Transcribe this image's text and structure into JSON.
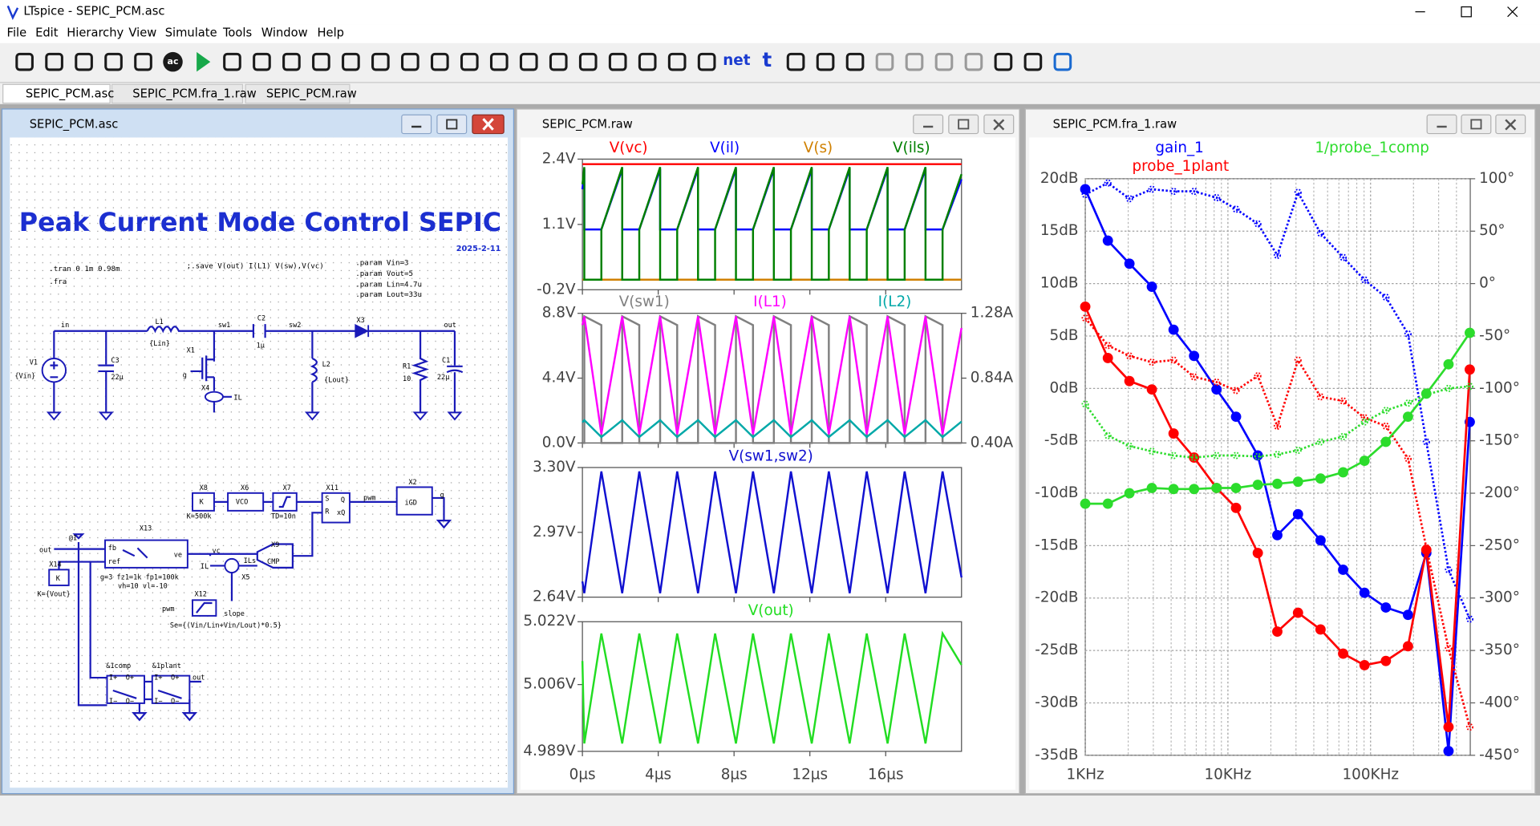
{
  "window": {
    "title": "LTspice - SEPIC_PCM.asc"
  },
  "menu": [
    "File",
    "Edit",
    "Hierarchy",
    "View",
    "Simulate",
    "Tools",
    "Window",
    "Help"
  ],
  "toolbar": [
    "ac",
    "net",
    "t"
  ],
  "tabs": [
    "SEPIC_PCM.asc",
    "SEPIC_PCM.fra_1.raw",
    "SEPIC_PCM.raw"
  ],
  "schematic": {
    "title": "SEPIC_PCM.asc",
    "heading": "Peak Current Mode Control SEPIC",
    "date": "2025-2-11",
    "directives": [
      ".tran 0 1m 0.98m",
      ".fra",
      ";.save V(out) I(L1) V(sw),V(vc)",
      ".param Vin=3",
      ".param Vout=5",
      ".param Lin=4.7u",
      ".param Lout=33u"
    ],
    "labels": [
      "in",
      "L1",
      "{Lin}",
      "sw1",
      "C2",
      "1µ",
      "sw2",
      "X3",
      "out",
      "V1",
      "{Vin}",
      "C3",
      "22µ",
      "X1",
      "g",
      "X4",
      "IL",
      "L2",
      "{Lout}",
      "R1",
      "10",
      "C1",
      "22µ",
      "X8",
      "K",
      "K=500k",
      "X6",
      "VCO",
      "X7",
      "TD=10n",
      "X11",
      "S",
      "Q",
      "R",
      "xQ",
      "pwm",
      "X2",
      "iGD",
      "g",
      "X13",
      "fb",
      "ref",
      "ve",
      "vc",
      "X9",
      "CMP",
      "ILs",
      "IL",
      "X5",
      "g=3 fz1=1k fp1=100k",
      "vh=10 vl=-10",
      "out",
      "@1",
      "X14",
      "K",
      "K={Vout}",
      "X12",
      "pwm",
      "slope",
      "Se={(Vin/Lin+Vin/Lout)*0.5}",
      "&1comp",
      "&1plant",
      "out",
      "I+",
      "O+",
      "I−",
      "O−",
      "I+",
      "O+",
      "I−",
      "O−"
    ]
  },
  "transient": {
    "title": "SEPIC_PCM.raw",
    "xlim": [
      0,
      20
    ],
    "xticks": [
      {
        "value": 0,
        "label": "0µs"
      },
      {
        "value": 4,
        "label": "4µs"
      },
      {
        "value": 8,
        "label": "8µs"
      },
      {
        "value": 12,
        "label": "12µs"
      },
      {
        "value": 16,
        "label": "16µs"
      }
    ],
    "panes": [
      {
        "ylim": [
          -0.2,
          2.4
        ],
        "yticks": [
          {
            "value": -0.2,
            "label": "-0.2V"
          },
          {
            "value": 1.1,
            "label": "1.1V"
          },
          {
            "value": 2.4,
            "label": "2.4V"
          }
        ],
        "x": [
          0,
          0.1,
          0.1,
          1,
          1,
          2.1,
          2.1,
          3,
          3,
          4.1,
          4.1,
          5,
          5,
          6.1,
          6.1,
          7,
          7,
          8.1,
          8.1,
          9,
          9,
          10.1,
          10.1,
          11,
          11,
          12.1,
          12.1,
          13,
          13,
          14.1,
          14.1,
          15,
          15,
          16.1,
          16.1,
          17,
          17,
          18.1,
          18.1,
          19,
          19,
          20
        ],
        "series": [
          {
            "name": "V(vc)",
            "color": "#ff0000",
            "x": [
              0,
              20
            ],
            "values": [
              2.3,
              2.3
            ]
          },
          {
            "name": "V(il)",
            "color": "#0000ff",
            "values": [
              1.8,
              2.2,
              1.0,
              1.0,
              1.0,
              2.2,
              1.0,
              1.0,
              1.0,
              2.2,
              1.0,
              1.0,
              1.0,
              2.2,
              1.0,
              1.0,
              1.0,
              2.2,
              1.0,
              1.0,
              1.0,
              2.2,
              1.0,
              1.0,
              1.0,
              2.2,
              1.0,
              1.0,
              1.0,
              2.2,
              1.0,
              1.0,
              1.0,
              2.2,
              1.0,
              1.0,
              1.0,
              2.2,
              1.0,
              1.0,
              1.0,
              2.0
            ]
          },
          {
            "name": "V(s)",
            "color": "#d08000",
            "x": [
              0,
              20
            ],
            "values": [
              0,
              0
            ]
          },
          {
            "name": "V(ils)",
            "color": "#008000",
            "values": [
              1.9,
              2.24,
              0,
              0,
              1.0,
              2.24,
              0,
              0,
              1.0,
              2.24,
              0,
              0,
              1.0,
              2.24,
              0,
              0,
              1.0,
              2.24,
              0,
              0,
              1.0,
              2.24,
              0,
              0,
              1.0,
              2.24,
              0,
              0,
              1.0,
              2.24,
              0,
              0,
              1.0,
              2.24,
              0,
              0,
              1.0,
              2.24,
              0,
              0,
              1.0,
              2.1
            ]
          }
        ]
      },
      {
        "ylim": [
          0,
          8.8
        ],
        "yticks": [
          {
            "value": 0,
            "label": "0.0V"
          },
          {
            "value": 4.4,
            "label": "4.4V"
          },
          {
            "value": 8.8,
            "label": "8.8V"
          }
        ],
        "y2lim": [
          0.4,
          1.28
        ],
        "y2ticks": [
          {
            "value": 0.4,
            "label": "0.40A"
          },
          {
            "value": 0.84,
            "label": "0.84A"
          },
          {
            "value": 1.28,
            "label": "1.28A"
          }
        ],
        "x": [
          0,
          0.1,
          0.1,
          1,
          1,
          2.1,
          2.1,
          3,
          3,
          4.1,
          4.1,
          5,
          5,
          6.1,
          6.1,
          7,
          7,
          8.1,
          8.1,
          9,
          9,
          10.1,
          10.1,
          11,
          11,
          12.1,
          12.1,
          13,
          13,
          14.1,
          14.1,
          15,
          15,
          16.1,
          16.1,
          17,
          17,
          18.1,
          18.1,
          19,
          19,
          20
        ],
        "series": [
          {
            "name": "V(sw1)",
            "color": "#808080",
            "values": [
              0,
              0,
              8.6,
              8.0,
              0,
              0,
              8.6,
              8.0,
              0,
              0,
              8.6,
              8.0,
              0,
              0,
              8.6,
              8.0,
              0,
              0,
              8.6,
              8.0,
              0,
              0,
              8.6,
              8.0,
              0,
              0,
              8.6,
              8.0,
              0,
              0,
              8.6,
              8.0,
              0,
              0,
              8.6,
              8.0,
              0,
              0,
              8.6,
              8.0,
              0,
              0
            ]
          },
          {
            "name": "I(L1)",
            "color": "#ff00ff",
            "axis": "y2",
            "x": [
              0,
              0.1,
              1,
              2.1,
              3,
              4.1,
              5,
              6.1,
              7,
              8.1,
              9,
              10.1,
              11,
              12.1,
              13,
              14.1,
              15,
              16.1,
              17,
              18.1,
              19,
              20
            ],
            "values": [
              1.2,
              1.26,
              0.46,
              1.26,
              0.46,
              1.26,
              0.46,
              1.26,
              0.46,
              1.26,
              0.46,
              1.26,
              0.46,
              1.26,
              0.46,
              1.26,
              0.46,
              1.26,
              0.46,
              1.26,
              0.46,
              1.18
            ]
          },
          {
            "name": "I(L2)",
            "color": "#00a8a8",
            "axis": "y2",
            "x": [
              0,
              0.1,
              1,
              2.1,
              3,
              4.1,
              5,
              6.1,
              7,
              8.1,
              9,
              10.1,
              11,
              12.1,
              13,
              14.1,
              15,
              16.1,
              17,
              18.1,
              19,
              20
            ],
            "values": [
              0.54,
              0.555,
              0.44,
              0.555,
              0.44,
              0.555,
              0.44,
              0.555,
              0.44,
              0.555,
              0.44,
              0.555,
              0.44,
              0.555,
              0.44,
              0.555,
              0.44,
              0.555,
              0.44,
              0.555,
              0.44,
              0.545
            ]
          }
        ]
      },
      {
        "ylim": [
          2.64,
          3.3
        ],
        "yticks": [
          {
            "value": 2.64,
            "label": "2.64V"
          },
          {
            "value": 2.97,
            "label": "2.97V"
          },
          {
            "value": 3.3,
            "label": "3.30V"
          }
        ],
        "x": [
          0,
          0.1,
          1,
          2.1,
          3,
          4.1,
          5,
          6.1,
          7,
          8.1,
          9,
          10.1,
          11,
          12.1,
          13,
          14.1,
          15,
          16.1,
          17,
          18.1,
          19,
          20
        ],
        "series": [
          {
            "name": "V(sw1,sw2)",
            "color": "#1010d0",
            "values": [
              2.72,
              2.66,
              3.28,
              2.66,
              3.28,
              2.66,
              3.28,
              2.66,
              3.28,
              2.66,
              3.28,
              2.66,
              3.28,
              2.66,
              3.28,
              2.66,
              3.28,
              2.66,
              3.28,
              2.66,
              3.28,
              2.74
            ]
          }
        ]
      },
      {
        "ylim": [
          4.989,
          5.022
        ],
        "yticks": [
          {
            "value": 4.989,
            "label": "4.989V"
          },
          {
            "value": 5.006,
            "label": "5.006V"
          },
          {
            "value": 5.022,
            "label": "5.022V"
          }
        ],
        "x": [
          0,
          0.1,
          1,
          2.1,
          3,
          4.1,
          5,
          6.1,
          7,
          8.1,
          9,
          10.1,
          11,
          12.1,
          13,
          14.1,
          15,
          16.1,
          17,
          18.1,
          19,
          20
        ],
        "series": [
          {
            "name": "V(out)",
            "color": "#22dd22",
            "values": [
              5.012,
              4.991,
              5.019,
              4.991,
              5.019,
              4.991,
              5.019,
              4.991,
              5.019,
              4.991,
              5.019,
              4.991,
              5.019,
              4.991,
              5.019,
              4.991,
              5.019,
              4.991,
              5.019,
              4.991,
              5.019,
              5.011
            ]
          }
        ]
      }
    ]
  },
  "bode": {
    "title": "SEPIC_PCM.fra_1.raw",
    "xscale": "log",
    "grid": true,
    "xlim": [
      1000,
      500000
    ],
    "xticks": [
      {
        "value": 1000,
        "label": "1KHz"
      },
      {
        "value": 10000,
        "label": "10KHz"
      },
      {
        "value": 100000,
        "label": "100KHz"
      }
    ],
    "minor_xticks": [
      2000,
      3000,
      4000,
      5000,
      6000,
      7000,
      8000,
      9000,
      20000,
      30000,
      40000,
      50000,
      60000,
      70000,
      80000,
      90000,
      200000,
      300000,
      400000
    ],
    "ylim": [
      -35,
      20
    ],
    "yticks": [
      {
        "value": 20,
        "label": "20dB"
      },
      {
        "value": 15,
        "label": "15dB"
      },
      {
        "value": 10,
        "label": "10dB"
      },
      {
        "value": 5,
        "label": "5dB"
      },
      {
        "value": 0,
        "label": "0dB"
      },
      {
        "value": -5,
        "label": "-5dB"
      },
      {
        "value": -10,
        "label": "-10dB"
      },
      {
        "value": -15,
        "label": "-15dB"
      },
      {
        "value": -20,
        "label": "-20dB"
      },
      {
        "value": -25,
        "label": "-25dB"
      },
      {
        "value": -30,
        "label": "-30dB"
      },
      {
        "value": -35,
        "label": "-35dB"
      }
    ],
    "y2lim": [
      -450,
      100
    ],
    "y2ticks": [
      {
        "value": 100,
        "label": "100°"
      },
      {
        "value": 50,
        "label": "50°"
      },
      {
        "value": 0,
        "label": "0°"
      },
      {
        "value": -50,
        "label": "-50°"
      },
      {
        "value": -100,
        "label": "-100°"
      },
      {
        "value": -150,
        "label": "-150°"
      },
      {
        "value": -200,
        "label": "-200°"
      },
      {
        "value": -250,
        "label": "-250°"
      },
      {
        "value": -300,
        "label": "-300°"
      },
      {
        "value": -350,
        "label": "-350°"
      },
      {
        "value": -400,
        "label": "-400°"
      },
      {
        "value": -450,
        "label": "-450°"
      }
    ],
    "x": [
      1000,
      1440,
      2040,
      2930,
      4160,
      5790,
      8320,
      11400,
      16200,
      22200,
      31000,
      44600,
      64200,
      90700,
      128000,
      183000,
      246000,
      352000,
      496000
    ],
    "series": [
      {
        "name": "gain_1",
        "color": "#0000ff",
        "values": [
          19.0,
          14.1,
          11.9,
          9.7,
          5.6,
          3.1,
          -0.1,
          -2.7,
          -6.4,
          -14.0,
          -12.0,
          -14.5,
          -17.3,
          -19.5,
          -20.9,
          -21.6,
          -15.7,
          -34.6,
          -3.2
        ],
        "phase": [
          85,
          96,
          81,
          90,
          88,
          88,
          82,
          71,
          57,
          27,
          87,
          48,
          25,
          3.5,
          -13,
          -48,
          -151,
          -273,
          -320
        ]
      },
      {
        "name": "probe_1plant",
        "color": "#ff0000",
        "values": [
          7.8,
          2.9,
          0.7,
          -0.1,
          -4.3,
          -6.6,
          -9.5,
          -11.4,
          -15.7,
          -23.2,
          -21.4,
          -23.0,
          -25.3,
          -26.4,
          -26.0,
          -24.6,
          -15.4,
          -32.3,
          1.8
        ],
        "phase": [
          -33,
          -59,
          -69,
          -75,
          -73,
          -89,
          -94,
          -102,
          -88,
          -136,
          -73,
          -108,
          -112,
          -128,
          -136,
          -167,
          -252,
          -348,
          -423
        ]
      },
      {
        "name": "1/probe_1comp",
        "color": "#2cdc2c",
        "values": [
          -11.0,
          -11.0,
          -10.0,
          -9.5,
          -9.6,
          -9.6,
          -9.5,
          -9.5,
          -9.2,
          -9.1,
          -8.9,
          -8.6,
          -8.0,
          -6.9,
          -5.1,
          -2.7,
          -0.5,
          2.3,
          5.3
        ],
        "phase": [
          -115,
          -145,
          -155,
          -160,
          -164,
          -166,
          -164,
          -164,
          -165,
          -163,
          -159,
          -151,
          -146,
          -132,
          -121,
          -114,
          -106,
          -100,
          -98
        ]
      }
    ]
  }
}
